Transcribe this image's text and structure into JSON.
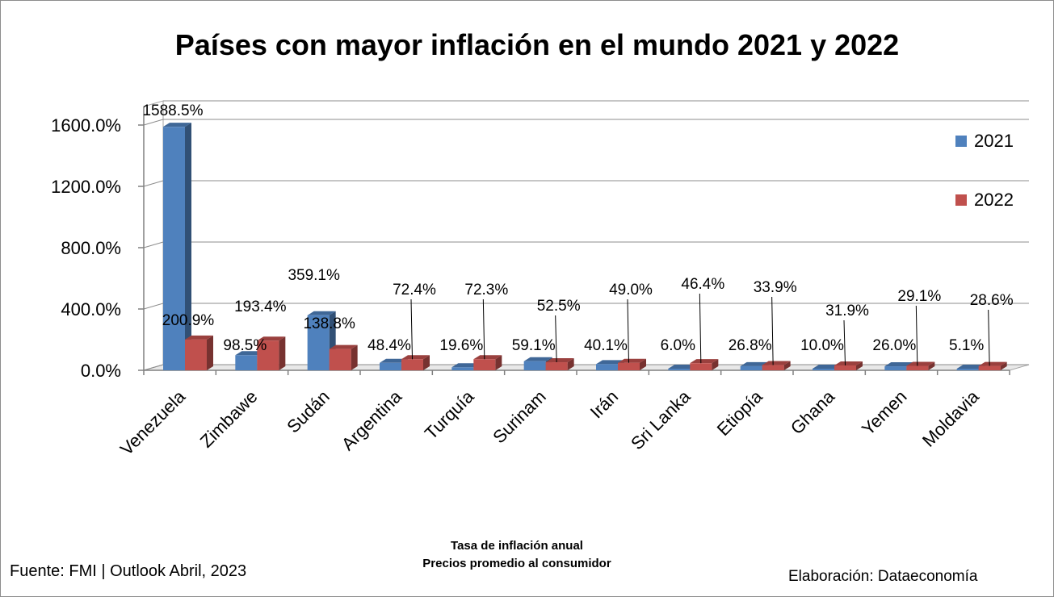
{
  "chart_data": {
    "type": "bar",
    "title": "Países con mayor inflación en el mundo 2021 y 2022",
    "categories": [
      "Venezuela",
      "Zimbawe",
      "Sudán",
      "Argentina",
      "Turquía",
      "Surinam",
      "Irán",
      "Sri Lanka",
      "Etiopía",
      "Ghana",
      "Yemen",
      "Moldavia"
    ],
    "series": [
      {
        "name": "2021",
        "color": "#4f81bd",
        "values": [
          1588.5,
          98.5,
          359.1,
          48.4,
          19.6,
          59.1,
          40.1,
          6.0,
          26.8,
          10.0,
          26.0,
          5.1
        ],
        "labels": [
          "1588.5%",
          "98.5%",
          "359.1%",
          "48.4%",
          "19.6%",
          "59.1%",
          "40.1%",
          "6.0%",
          "26.8%",
          "10.0%",
          "26.0%",
          "5.1%"
        ]
      },
      {
        "name": "2022",
        "color": "#c0504d",
        "values": [
          200.9,
          193.4,
          138.8,
          72.4,
          72.3,
          52.5,
          49.0,
          46.4,
          33.9,
          31.9,
          29.1,
          28.6
        ],
        "labels": [
          "200.9%",
          "193.4%",
          "138.8%",
          "72.4%",
          "72.3%",
          "52.5%",
          "49.0%",
          "46.4%",
          "33.9%",
          "31.9%",
          "29.1%",
          "28.6%"
        ]
      }
    ],
    "yticks": [
      "0.0%",
      "400.0%",
      "800.0%",
      "1200.0%",
      "1600.0%"
    ],
    "ylim": [
      0,
      1600
    ],
    "grid": true,
    "legend_position": "right"
  },
  "footer": {
    "source": "Fuente: FMI | Outlook Abril, 2023",
    "subtitle_line1": "Tasa de inflación anual",
    "subtitle_line2": "Precios promedio al consumidor",
    "credit": "Elaboración: Dataeconomía"
  }
}
